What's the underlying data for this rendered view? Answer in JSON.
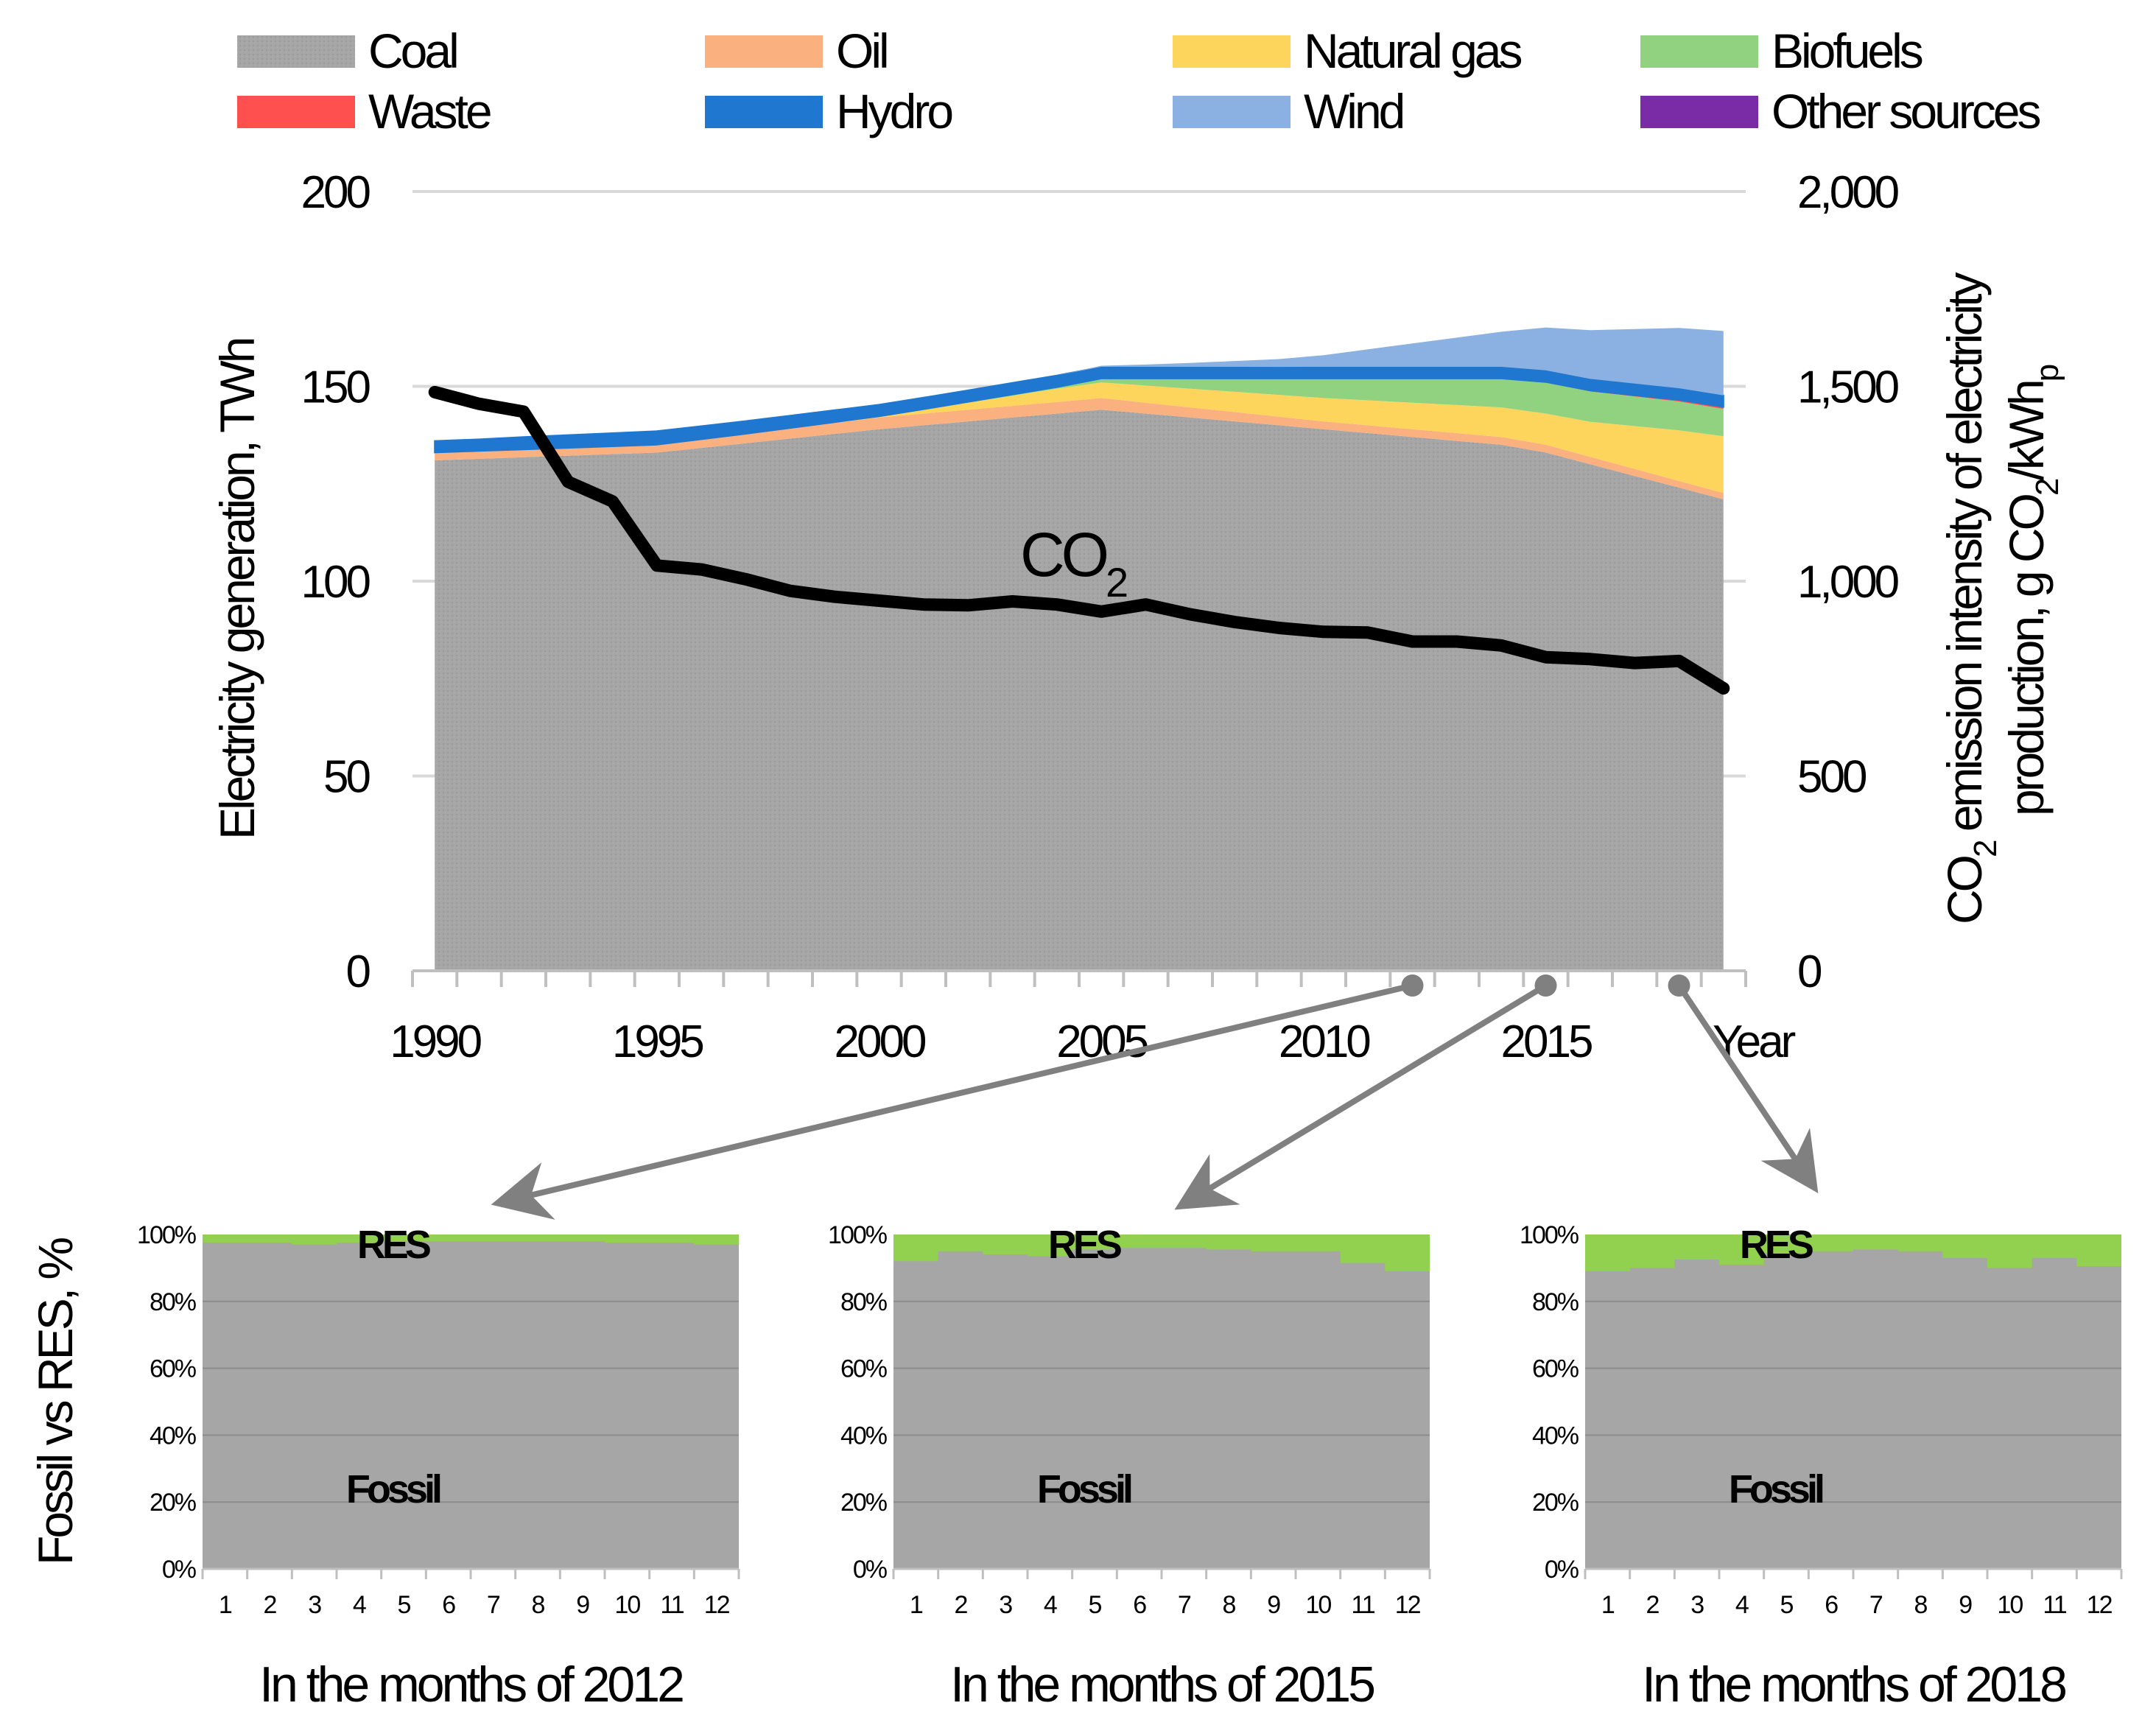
{
  "chart_data": [
    {
      "id": "main",
      "type": "area",
      "stacked": true,
      "title": "",
      "x": [
        1990,
        1991,
        1992,
        1993,
        1994,
        1995,
        1996,
        1997,
        1998,
        1999,
        2000,
        2001,
        2002,
        2003,
        2004,
        2005,
        2006,
        2007,
        2008,
        2009,
        2010,
        2011,
        2012,
        2013,
        2014,
        2015,
        2016,
        2017,
        2018,
        2019
      ],
      "x_ticks": [
        "1990",
        "1995",
        "2000",
        "2005",
        "2010",
        "2015"
      ],
      "xlabel": "Year",
      "ylabel": "Electricity generation, TWh",
      "ylim": [
        0,
        200
      ],
      "y_ticks": [
        "0",
        "50",
        "100",
        "150",
        "200"
      ],
      "grid": true,
      "series": [
        {
          "name": "Coal",
          "color": "#a6a6a6",
          "values": [
            131,
            131.4,
            131.8,
            132.2,
            132.6,
            133,
            134.2,
            135.4,
            136.6,
            137.8,
            139,
            140,
            141,
            142,
            143,
            144,
            143,
            142,
            141,
            140,
            139,
            138,
            137,
            136,
            135,
            133,
            130,
            127,
            124,
            121
          ]
        },
        {
          "name": "Oil",
          "color": "#fbb07f",
          "values": [
            2,
            2,
            2,
            2,
            2,
            2,
            2.2,
            2.4,
            2.6,
            2.8,
            3,
            3,
            3,
            3,
            3,
            3,
            2.8,
            2.6,
            2.4,
            2.2,
            2,
            2,
            2,
            2,
            2,
            2,
            1.9,
            1.8,
            1.7,
            1.6
          ]
        },
        {
          "name": "Natural gas",
          "color": "#fed55c",
          "values": [
            0,
            0,
            0,
            0,
            0,
            0,
            0,
            0,
            0.1,
            0.2,
            0.3,
            1,
            1.8,
            2.6,
            3.4,
            4,
            4.4,
            4.8,
            5.2,
            5.6,
            6,
            6.4,
            6.8,
            7.2,
            7.6,
            8,
            9,
            11,
            13,
            14.6
          ]
        },
        {
          "name": "Biofuels",
          "color": "#90d280",
          "values": [
            0,
            0,
            0,
            0,
            0,
            0,
            0,
            0,
            0,
            0,
            0,
            0.1,
            0.2,
            0.3,
            0.4,
            1,
            1.8,
            2.6,
            3.4,
            4.2,
            5,
            5.6,
            6.2,
            6.8,
            7.4,
            8,
            7.8,
            7.6,
            7.4,
            7
          ]
        },
        {
          "name": "Waste",
          "color": "#ff5050",
          "values": [
            0,
            0,
            0,
            0,
            0,
            0,
            0,
            0,
            0,
            0,
            0,
            0,
            0,
            0,
            0,
            0,
            0,
            0,
            0,
            0,
            0,
            0,
            0,
            0,
            0,
            0.1,
            0.2,
            0.3,
            0.4,
            0.5
          ]
        },
        {
          "name": "Hydro",
          "color": "#1f77d0",
          "values": [
            3,
            3,
            3.2,
            3.3,
            3.4,
            3.5,
            3.4,
            3.3,
            3.2,
            3.1,
            3,
            3,
            3,
            3,
            3,
            3,
            3,
            3,
            3,
            3,
            3,
            3,
            3,
            3,
            3,
            3,
            3,
            3,
            3,
            3
          ]
        },
        {
          "name": "Wind",
          "color": "#8ab1e1",
          "values": [
            0,
            0,
            0,
            0,
            0,
            0,
            0,
            0,
            0,
            0,
            0,
            0,
            0,
            0,
            0,
            0.3,
            0.6,
            1,
            1.5,
            2,
            3,
            4.5,
            6,
            7.5,
            9,
            11,
            12.5,
            14,
            15.5,
            16.5
          ]
        },
        {
          "name": "Other sources",
          "color": "#7a2ca6",
          "values": [
            0,
            0,
            0,
            0,
            0,
            0,
            0,
            0,
            0,
            0,
            0,
            0,
            0,
            0,
            0,
            0,
            0,
            0,
            0,
            0,
            0,
            0,
            0,
            0,
            0,
            0,
            0,
            0,
            0,
            0
          ]
        }
      ],
      "secondary_axis": {
        "label_main": "CO",
        "label_sub": "2",
        "label_rest": " emission intensity of electricity",
        "label_line2": "production, g CO",
        "label_line2_sub": "2",
        "label_line2_rest": "/kWh",
        "label_line2_sub2": "p",
        "ylim": [
          0,
          2000
        ],
        "y_ticks": [
          "0",
          "500",
          "1,000",
          "1,500",
          "2,000"
        ],
        "series": {
          "name": "CO2",
          "color": "#000000",
          "values": [
            1485,
            1455,
            1435,
            1255,
            1205,
            1040,
            1030,
            1005,
            975,
            960,
            950,
            940,
            938,
            948,
            940,
            922,
            940,
            915,
            895,
            880,
            870,
            868,
            845,
            845,
            835,
            805,
            800,
            790,
            795,
            725
          ]
        }
      },
      "annotation": {
        "text": "CO",
        "sub": "2",
        "x": 2005
      }
    },
    {
      "id": "months-2012",
      "type": "area",
      "stacked": true,
      "title": "In the months of 2012",
      "ylabel": "Fossil vs RES, %",
      "categories": [
        "1",
        "2",
        "3",
        "4",
        "5",
        "6",
        "7",
        "8",
        "9",
        "10",
        "11",
        "12"
      ],
      "y_ticks": [
        "0%",
        "20%",
        "40%",
        "60%",
        "80%",
        "100%"
      ],
      "ylim": [
        0,
        100
      ],
      "series": [
        {
          "name": "Fossil",
          "color": "#a6a6a6",
          "values": [
            97.5,
            97.5,
            97,
            97.5,
            98,
            98,
            98,
            98,
            98,
            97.5,
            97.5,
            97
          ]
        },
        {
          "name": "RES",
          "color": "#92d050",
          "values": [
            2.5,
            2.5,
            3,
            2.5,
            2,
            2,
            2,
            2,
            2,
            2.5,
            2.5,
            3
          ]
        }
      ],
      "source_year": 2012
    },
    {
      "id": "months-2015",
      "type": "area",
      "stacked": true,
      "title": "In the months of 2015",
      "categories": [
        "1",
        "2",
        "3",
        "4",
        "5",
        "6",
        "7",
        "8",
        "9",
        "10",
        "11",
        "12"
      ],
      "y_ticks": [
        "0%",
        "20%",
        "40%",
        "60%",
        "80%",
        "100%"
      ],
      "ylim": [
        0,
        100
      ],
      "series": [
        {
          "name": "Fossil",
          "color": "#a6a6a6",
          "values": [
            92,
            95,
            94,
            93.5,
            95.5,
            96,
            96,
            95.5,
            95,
            95,
            91.5,
            89
          ]
        },
        {
          "name": "RES",
          "color": "#92d050",
          "values": [
            8,
            5,
            6,
            6.5,
            4.5,
            4,
            4,
            4.5,
            5,
            5,
            8.5,
            11
          ]
        }
      ],
      "source_year": 2015
    },
    {
      "id": "months-2018",
      "type": "area",
      "stacked": true,
      "title": "In the months of 2018",
      "categories": [
        "1",
        "2",
        "3",
        "4",
        "5",
        "6",
        "7",
        "8",
        "9",
        "10",
        "11",
        "12"
      ],
      "y_ticks": [
        "0%",
        "20%",
        "40%",
        "60%",
        "80%",
        "100%"
      ],
      "ylim": [
        0,
        100
      ],
      "series": [
        {
          "name": "Fossil",
          "color": "#a6a6a6",
          "values": [
            89,
            90,
            92.5,
            91,
            94.5,
            95,
            95.5,
            95,
            93,
            90,
            93,
            90.5
          ]
        },
        {
          "name": "RES",
          "color": "#92d050",
          "values": [
            11,
            10,
            7.5,
            9,
            5.5,
            5,
            4.5,
            5,
            7,
            10,
            7,
            9.5
          ]
        }
      ],
      "source_year": 2018
    }
  ],
  "labels": {
    "fossil": "Fossil",
    "res": "RES",
    "year": "Year"
  },
  "colors": {
    "grid": "#d9d9d9",
    "axis": "#bfbfbf",
    "arrow": "#808080"
  }
}
